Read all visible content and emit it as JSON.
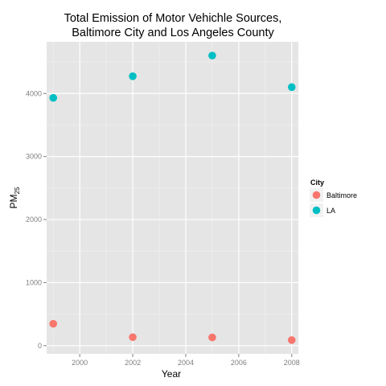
{
  "chart_data": {
    "type": "scatter",
    "title_lines": [
      "Total Emission of Motor Vehichle Sources,",
      "Baltimore City and Los Angeles County"
    ],
    "xlabel": "Year",
    "ylabel_base": "PM",
    "ylabel_sub": "25",
    "xlim": [
      1998.75,
      2008.25
    ],
    "ylim": [
      -130,
      4820
    ],
    "x_ticks": [
      2000,
      2002,
      2004,
      2006,
      2008
    ],
    "y_ticks": [
      0,
      1000,
      2000,
      3000,
      4000
    ],
    "grid": true,
    "legend_title": "City",
    "legend_position": "right",
    "series": [
      {
        "name": "Baltimore",
        "color": "#F8766D",
        "x": [
          1999,
          2002,
          2005,
          2008
        ],
        "y": [
          346.8,
          134.3,
          130.4,
          88.3
        ]
      },
      {
        "name": "LA",
        "color": "#00BFC4",
        "x": [
          1999,
          2002,
          2005,
          2008
        ],
        "y": [
          3931.1,
          4274.0,
          4601.4,
          4101.3
        ]
      }
    ]
  }
}
